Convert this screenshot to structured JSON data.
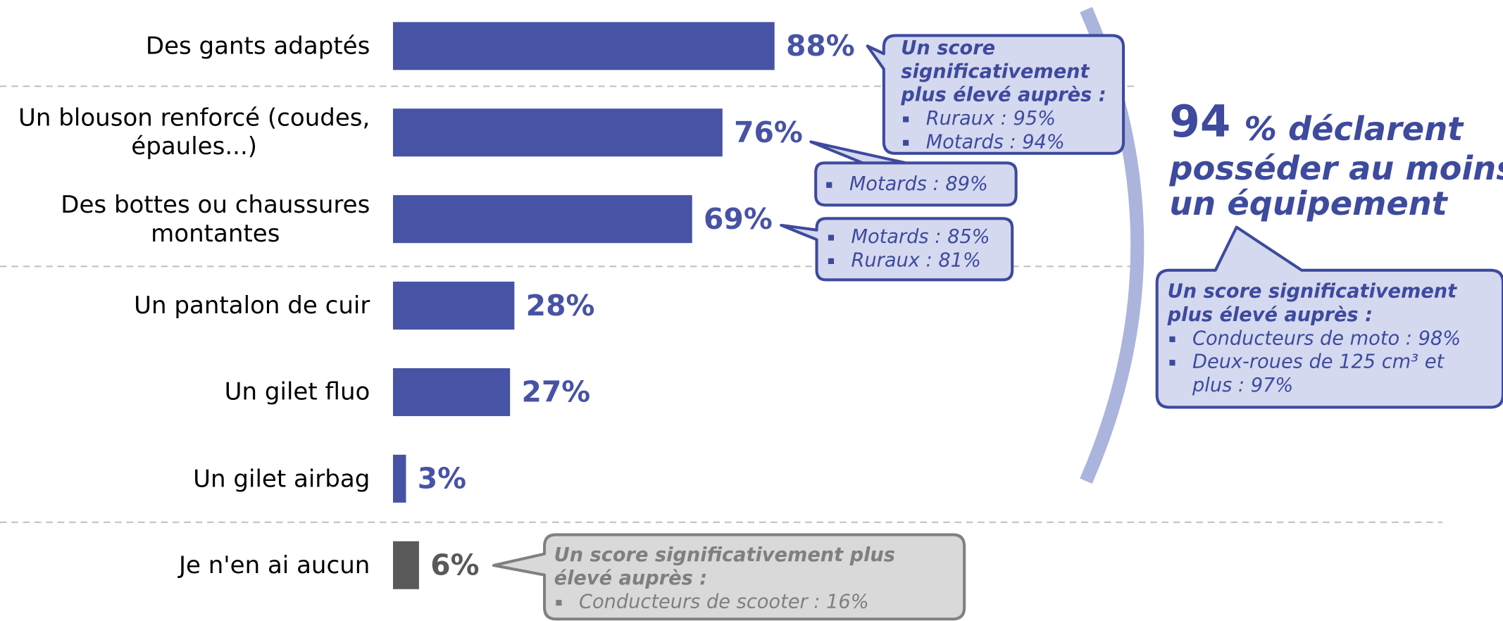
{
  "chart_data": {
    "type": "bar",
    "orientation": "horizontal",
    "categories": [
      "Des gants adaptés",
      "Un blouson renforcé (coudes,\népaules...)",
      "Des bottes ou chaussures\nmontantes",
      "Un pantalon de cuir",
      "Un gilet fluo",
      "Un gilet airbag",
      "Je n'en ai aucun"
    ],
    "values": [
      88,
      76,
      69,
      28,
      27,
      3,
      6
    ],
    "value_labels": [
      "88%",
      "76%",
      "69%",
      "28%",
      "27%",
      "3%",
      "6%"
    ],
    "colors": [
      "#4753a5",
      "#4753a5",
      "#4753a5",
      "#4753a5",
      "#4753a5",
      "#4753a5",
      "#595959"
    ],
    "headline": {
      "number": 94,
      "lines": [
        "% déclarent",
        "posséder au moins",
        "un équipement"
      ]
    },
    "callouts": [
      {
        "title": [
          "Un score",
          "significativement",
          "plus élevé auprès :"
        ],
        "items": [
          [
            "Ruraux : 95%"
          ],
          [
            "Motards : 94%"
          ]
        ]
      },
      {
        "title": [],
        "items": [
          [
            "Motards : 89%"
          ]
        ]
      },
      {
        "title": [],
        "items": [
          [
            "Motards : 85%"
          ],
          [
            "Ruraux : 81%"
          ]
        ]
      },
      {
        "title": [
          "Un score significativement",
          "plus élevé auprès :"
        ],
        "items": [
          [
            "Conducteurs de moto : 98%"
          ],
          [
            "Deux-roues de 125 cm³ et",
            "plus : 97%"
          ]
        ]
      },
      {
        "title": [
          "Un score significativement plus",
          "élevé auprès :"
        ],
        "items": [
          [
            "Conducteurs de scooter : 16%"
          ]
        ]
      }
    ]
  }
}
